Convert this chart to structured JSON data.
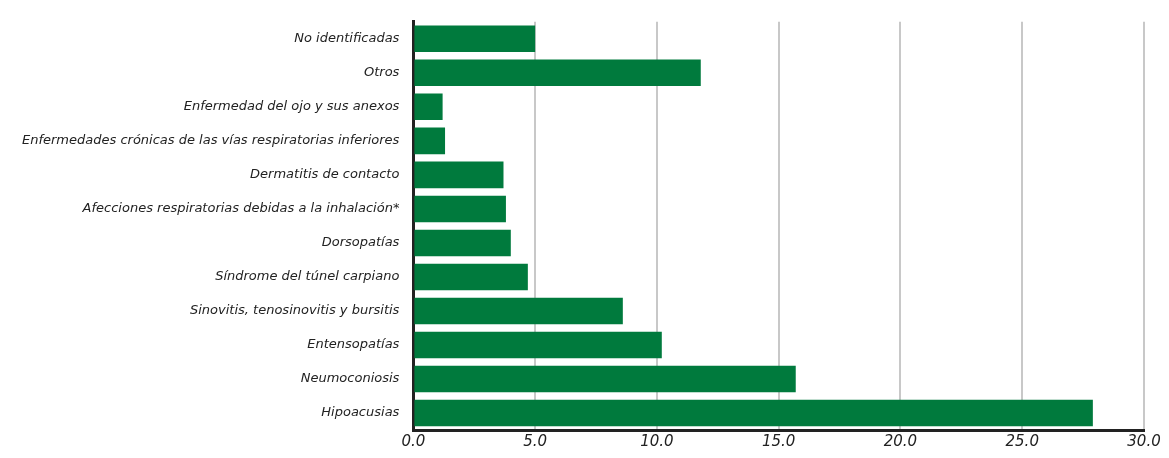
{
  "chart_data": {
    "type": "bar",
    "orientation": "horizontal",
    "categories": [
      "No identificadas",
      "Otros",
      "Enfermedad del ojo y sus anexos",
      "Enfermedades crónicas de las vías respiratorias inferiores",
      "Dermatitis de contacto",
      "Afecciones respiratorias debidas a la inhalación*",
      "Dorsopatías",
      "Síndrome del túnel carpiano",
      "Sinovitis, tenosinovitis y bursitis",
      "Entensopatías",
      "Neumoconiosis",
      "Hipoacusias"
    ],
    "values": [
      5.0,
      11.8,
      1.2,
      1.3,
      3.7,
      3.8,
      4.0,
      4.7,
      8.6,
      10.2,
      15.7,
      27.9
    ],
    "color": "#007a3d",
    "xlim": [
      0,
      30
    ],
    "xticks": [
      {
        "value": 0,
        "label": "0.0"
      },
      {
        "value": 5,
        "label": "5.0"
      },
      {
        "value": 10,
        "label": "10.0"
      },
      {
        "value": 15,
        "label": "15.0"
      },
      {
        "value": 20,
        "label": "20.0"
      },
      {
        "value": 25,
        "label": "25.0"
      },
      {
        "value": 30,
        "label": "30.0"
      }
    ],
    "grid": "x"
  }
}
